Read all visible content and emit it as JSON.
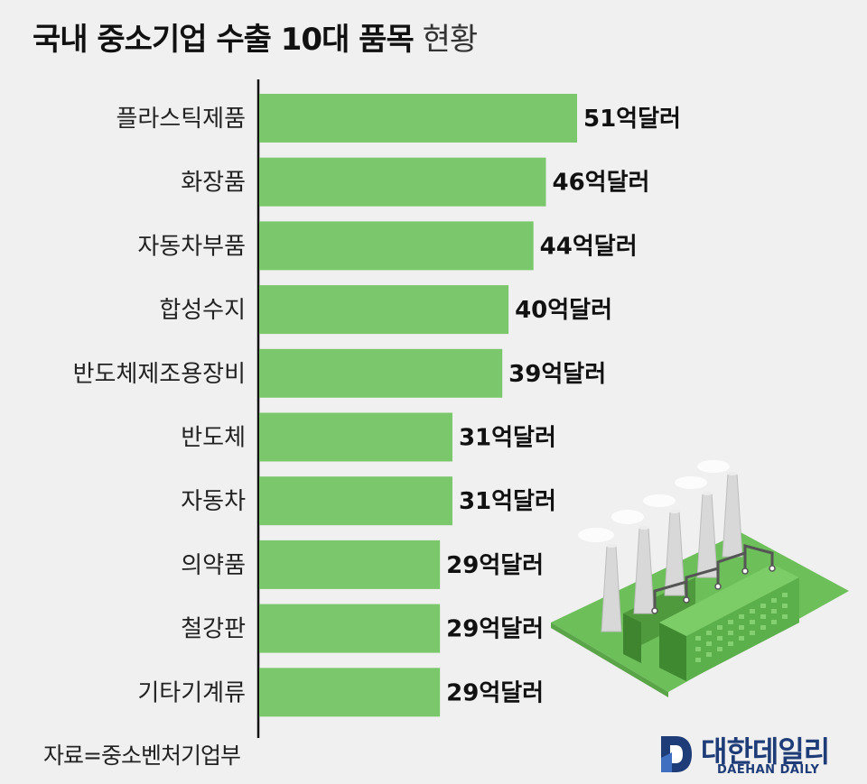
{
  "title": {
    "bold": "국내 중소기업 수출 10대 품목",
    "light": "현황"
  },
  "chart_data": {
    "type": "bar",
    "orientation": "horizontal",
    "categories": [
      "플라스틱제품",
      "화장품",
      "자동차부품",
      "합성수지",
      "반도체제조용장비",
      "반도체",
      "자동차",
      "의약품",
      "철강판",
      "기타기계류"
    ],
    "values": [
      51,
      46,
      44,
      40,
      39,
      31,
      31,
      29,
      29,
      29
    ],
    "value_labels": [
      "51억달러",
      "46억달러",
      "44억달러",
      "40억달러",
      "39억달러",
      "31억달러",
      "31억달러",
      "29억달러",
      "29억달러",
      "29억달러"
    ],
    "unit": "억달러",
    "bar_color": "#7bc86c",
    "xlim": [
      0,
      75
    ],
    "grid": false
  },
  "source": "자료=중소벤처기업부",
  "logo": {
    "name_ko": "대한데일리",
    "name_en": "DAEHAN DAILY",
    "color": "#1e3c78"
  },
  "illustration": {
    "icon": "factory-icon",
    "ground_color": "#6dbf5a",
    "building_color": "#4fa040"
  }
}
